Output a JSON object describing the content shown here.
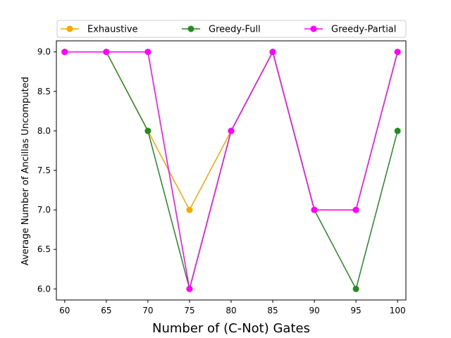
{
  "chart_data": {
    "type": "line",
    "x": [
      60,
      65,
      70,
      75,
      80,
      85,
      90,
      95,
      100
    ],
    "xticks": [
      "60",
      "65",
      "70",
      "75",
      "80",
      "85",
      "90",
      "95",
      "100"
    ],
    "yticks": [
      "6.0",
      "6.5",
      "7.0",
      "7.5",
      "8.0",
      "8.5",
      "9.0"
    ],
    "xlabel": "Number of (C-Not) Gates",
    "ylabel": "Average Number of Ancillas Uncomputed",
    "xlim": [
      59,
      101
    ],
    "ylim": [
      5.86,
      9.14
    ],
    "grid": false,
    "legend_placement": "top",
    "series": [
      {
        "name": "Exhaustive",
        "color": "#ffa500",
        "values": [
          9,
          9,
          8,
          7,
          8,
          9,
          7,
          7,
          9
        ]
      },
      {
        "name": "Greedy-Full",
        "color": "#228b22",
        "values": [
          9,
          9,
          8,
          6,
          8,
          9,
          7,
          6,
          8
        ]
      },
      {
        "name": "Greedy-Partial",
        "color": "#ff00ff",
        "values": [
          9,
          9,
          9,
          6,
          8,
          9,
          7,
          7,
          9
        ]
      }
    ]
  }
}
